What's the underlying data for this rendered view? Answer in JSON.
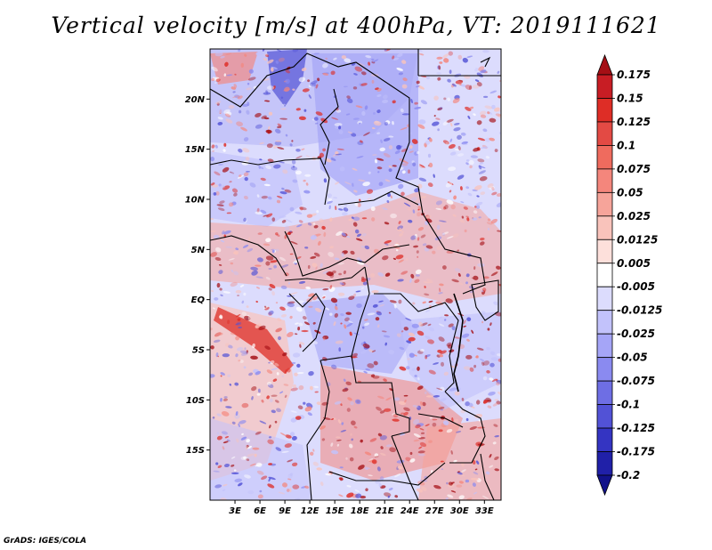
{
  "title": "Vertical velocity [m/s] at 400hPa, VT: 2019111621",
  "footer": "GrADS: IGES/COLA",
  "map": {
    "lon_range": [
      0,
      35
    ],
    "lat_range": [
      -20,
      25
    ],
    "lat_ticks": [
      {
        "value": 20,
        "label": "20N"
      },
      {
        "value": 15,
        "label": "15N"
      },
      {
        "value": 10,
        "label": "10N"
      },
      {
        "value": 5,
        "label": "5N"
      },
      {
        "value": 0,
        "label": "EQ"
      },
      {
        "value": -5,
        "label": "5S"
      },
      {
        "value": -10,
        "label": "10S"
      },
      {
        "value": -15,
        "label": "15S"
      }
    ],
    "lon_ticks": [
      {
        "value": 3,
        "label": "3E"
      },
      {
        "value": 6,
        "label": "6E"
      },
      {
        "value": 9,
        "label": "9E"
      },
      {
        "value": 12,
        "label": "12E"
      },
      {
        "value": 15,
        "label": "15E"
      },
      {
        "value": 18,
        "label": "18E"
      },
      {
        "value": 21,
        "label": "21E"
      },
      {
        "value": 24,
        "label": "24E"
      },
      {
        "value": 27,
        "label": "27E"
      },
      {
        "value": 30,
        "label": "30E"
      },
      {
        "value": 33,
        "label": "33E"
      }
    ]
  },
  "colorbar": {
    "labels": [
      "0.175",
      "0.15",
      "0.125",
      "0.1",
      "0.075",
      "0.05",
      "0.025",
      "0.0125",
      "0.005",
      "-0.005",
      "-0.0125",
      "-0.025",
      "-0.05",
      "-0.075",
      "-0.1",
      "-0.125",
      "-0.175",
      "-0.2"
    ],
    "colors": [
      "#a50f15",
      "#c81d24",
      "#de2d26",
      "#e34a44",
      "#ef6b5e",
      "#f4867c",
      "#f6a49a",
      "#f9c3bb",
      "#fde0db",
      "#ffffff",
      "#dcdcfd",
      "#c2c2fb",
      "#a5a5f7",
      "#8a8af0",
      "#6e6ee4",
      "#5252d6",
      "#3434c2",
      "#2020a8",
      "#12128a"
    ]
  }
}
